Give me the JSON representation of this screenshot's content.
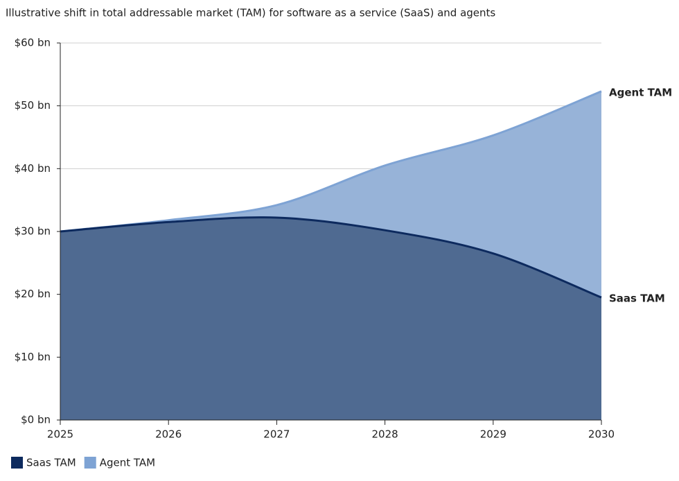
{
  "chart_data": {
    "type": "area",
    "title": "Illustrative shift in total addressable market (TAM) for software as a service (SaaS) and agents",
    "x": [
      2025,
      2026,
      2027,
      2028,
      2029,
      2030
    ],
    "xlim": [
      2025,
      2030
    ],
    "xticks": [
      2025,
      2026,
      2027,
      2028,
      2029,
      2030
    ],
    "ylim": [
      0,
      60
    ],
    "yticks": [
      {
        "value": 0,
        "label": "$0 bn"
      },
      {
        "value": 10,
        "label": "$10 bn"
      },
      {
        "value": 20,
        "label": "$20 bn"
      },
      {
        "value": 30,
        "label": "$30 bn"
      },
      {
        "value": 40,
        "label": "$40 bn"
      },
      {
        "value": 50,
        "label": "$50 bn"
      },
      {
        "value": 60,
        "label": "$60 bn"
      }
    ],
    "grid": true,
    "legend": "bottom-left",
    "series": [
      {
        "name": "Saas TAM",
        "color": "#0d2a5e",
        "fill": "#4f6a91",
        "values": [
          30,
          31.5,
          32.2,
          30.2,
          26.5,
          19.5
        ]
      },
      {
        "name": "Agent TAM",
        "color": "#7ea3d4",
        "fill": "#97b3d8",
        "values": [
          30,
          31.8,
          34.2,
          40.5,
          45.3,
          52.3
        ]
      }
    ]
  }
}
